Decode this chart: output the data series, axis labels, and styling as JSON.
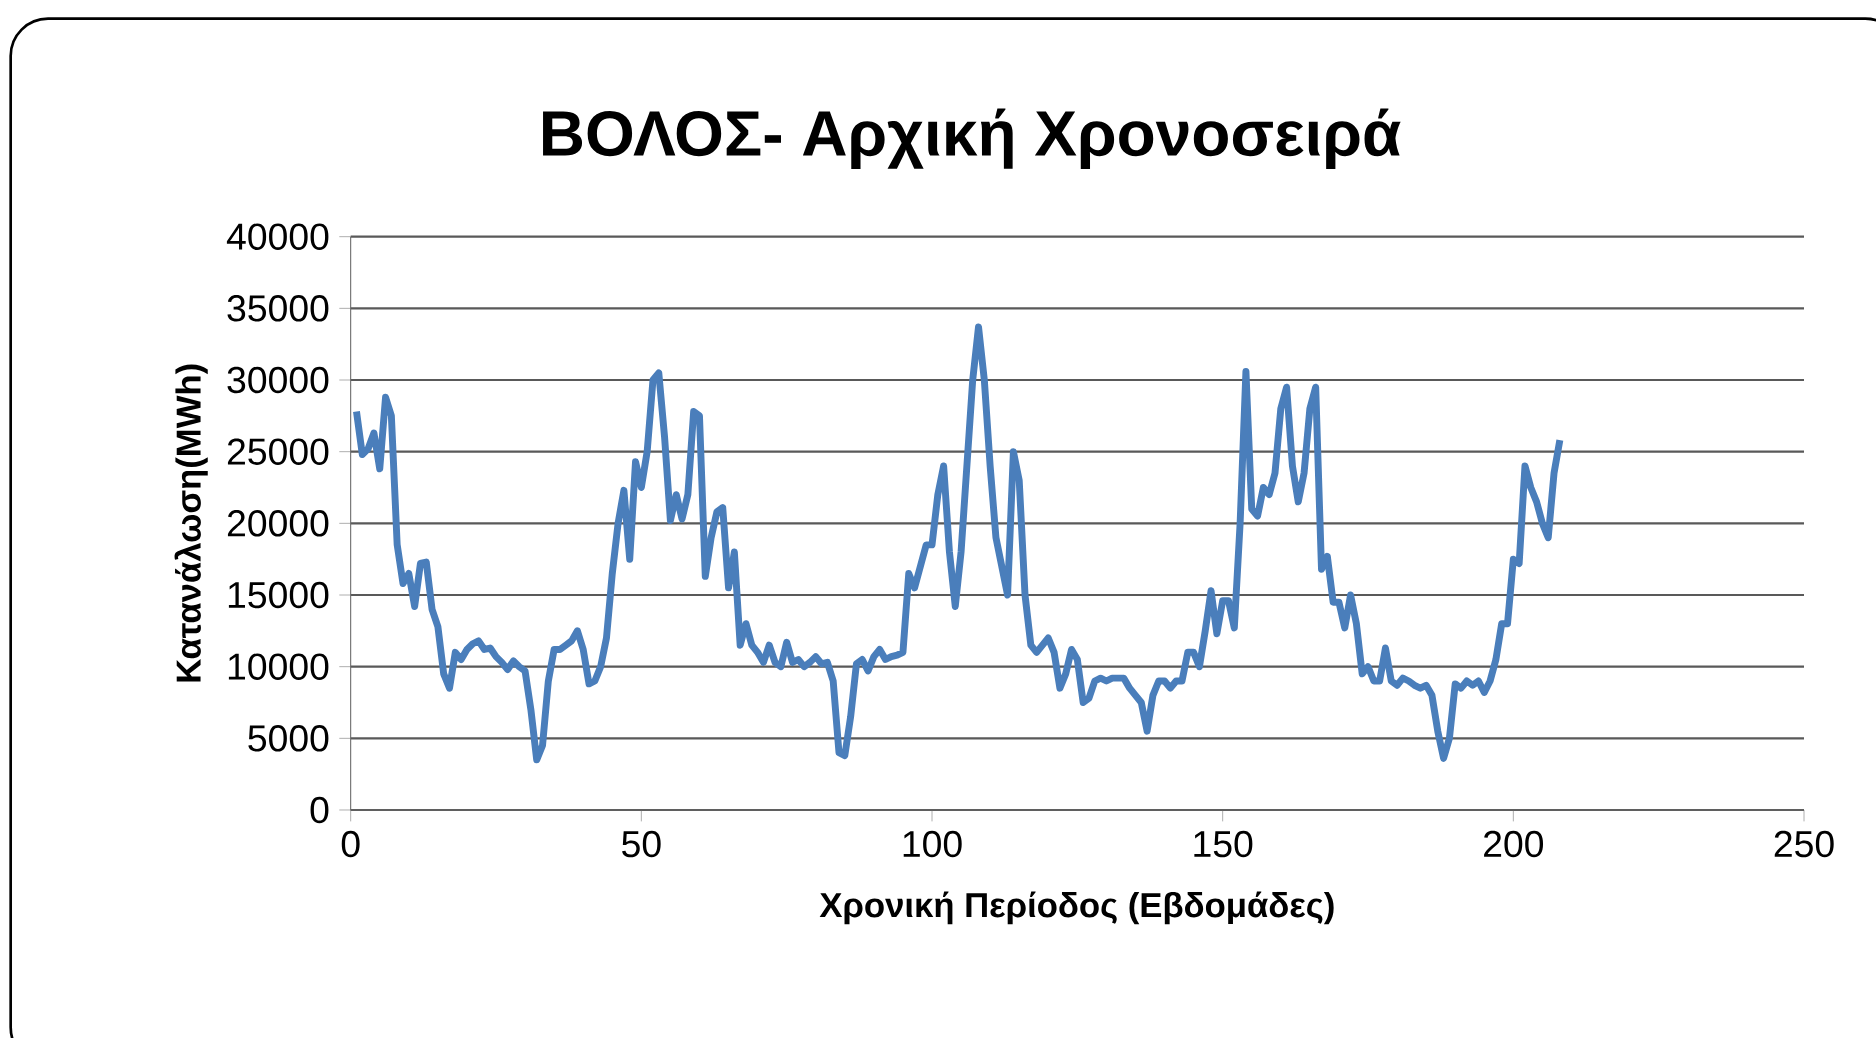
{
  "chart_data": {
    "type": "line",
    "title": "ΒΟΛΟΣ- Αρχική Χρονοσειρά",
    "xlabel": "Χρονική Περίοδος (Εβδομάδες)",
    "ylabel": "Κατανάλωση(MWh)",
    "x": [
      1,
      2,
      3,
      4,
      5,
      6,
      7,
      8,
      9,
      10,
      11,
      12,
      13,
      14,
      15,
      16,
      17,
      18,
      19,
      20,
      21,
      22,
      23,
      24,
      25,
      26,
      27,
      28,
      29,
      30,
      31,
      32,
      33,
      34,
      35,
      36,
      37,
      38,
      39,
      40,
      41,
      42,
      43,
      44,
      45,
      46,
      47,
      48,
      49,
      50,
      51,
      52,
      53,
      54,
      55,
      56,
      57,
      58,
      59,
      60,
      61,
      62,
      63,
      64,
      65,
      66,
      67,
      68,
      69,
      70,
      71,
      72,
      73,
      74,
      75,
      76,
      77,
      78,
      79,
      80,
      81,
      82,
      83,
      84,
      85,
      86,
      87,
      88,
      89,
      90,
      91,
      92,
      93,
      94,
      95,
      96,
      97,
      98,
      99,
      100,
      101,
      102,
      103,
      104,
      105,
      106,
      107,
      108,
      109,
      110,
      111,
      112,
      113,
      114,
      115,
      116,
      117,
      118,
      119,
      120,
      121,
      122,
      123,
      124,
      125,
      126,
      127,
      128,
      129,
      130,
      131,
      132,
      133,
      134,
      135,
      136,
      137,
      138,
      139,
      140,
      141,
      142,
      143,
      144,
      145,
      146,
      147,
      148,
      149,
      150,
      151,
      152,
      153,
      154,
      155,
      156,
      157,
      158,
      159,
      160,
      161,
      162,
      163,
      164,
      165,
      166,
      167,
      168,
      169,
      170,
      171,
      172,
      173,
      174,
      175,
      176,
      177,
      178,
      179,
      180,
      181,
      182,
      183,
      184,
      185,
      186,
      187,
      188,
      189,
      190,
      191,
      192,
      193,
      194,
      195,
      196,
      197,
      198,
      199,
      200,
      201,
      202,
      203,
      204,
      205,
      206,
      207,
      208
    ],
    "series": [
      {
        "color": "#4a7ebb",
        "values": [
          27800,
          24800,
          25200,
          26300,
          23800,
          28800,
          27500,
          18500,
          15800,
          16500,
          14200,
          17200,
          17300,
          14000,
          12800,
          9500,
          8500,
          11000,
          10500,
          11200,
          11600,
          11800,
          11200,
          11300,
          10700,
          10300,
          9800,
          10400,
          10000,
          9700,
          7000,
          3500,
          4500,
          9000,
          11200,
          11200,
          11500,
          11800,
          12500,
          11200,
          8800,
          9000,
          10000,
          12000,
          16500,
          20000,
          22300,
          17500,
          24300,
          22500,
          25000,
          30000,
          30500,
          26000,
          20200,
          22000,
          20300,
          22000,
          27800,
          27500,
          16300,
          19000,
          20800,
          21100,
          15500,
          18000,
          11500,
          13000,
          11500,
          11000,
          10300,
          11500,
          10300,
          10000,
          11700,
          10300,
          10500,
          10000,
          10300,
          10700,
          10200,
          10300,
          9000,
          4000,
          3800,
          6500,
          10200,
          10500,
          9700,
          10700,
          11200,
          10500,
          10700,
          10800,
          11000,
          16500,
          15500,
          17000,
          18500,
          18500,
          22000,
          24000,
          18000,
          14200,
          18000,
          24000,
          30000,
          33700,
          30000,
          24000,
          19000,
          17000,
          15000,
          25000,
          23000,
          15000,
          11500,
          11000,
          11500,
          12000,
          11000,
          8500,
          9500,
          11200,
          10500,
          7500,
          7800,
          9000,
          9200,
          9000,
          9200,
          9200,
          9200,
          8500,
          8000,
          7500,
          5500,
          8000,
          9000,
          9000,
          8500,
          9000,
          9000,
          11000,
          11000,
          10000,
          12500,
          15300,
          12300,
          14600,
          14600,
          12700,
          20000,
          30600,
          21000,
          20500,
          22500,
          22000,
          23500,
          28000,
          29500,
          24000,
          21500,
          23500,
          28000,
          29500,
          16800,
          17700,
          14500,
          14500,
          12700,
          15000,
          13000,
          9500,
          10000,
          9000,
          9000,
          11300,
          9000,
          8700,
          9200,
          9000,
          8700,
          8500,
          8700,
          8000,
          5500,
          3600,
          5000,
          8800,
          8500,
          9000,
          8700,
          9000,
          8200,
          9000,
          10500,
          13000,
          13000,
          17500,
          17200,
          24000,
          22500,
          21500,
          20000,
          19000,
          23500,
          25800
        ]
      }
    ],
    "xlim": [
      0,
      250
    ],
    "xticks": [
      0,
      50,
      100,
      150,
      200,
      250
    ],
    "ylim": [
      0,
      40000
    ],
    "yticks": [
      0,
      5000,
      10000,
      15000,
      20000,
      25000,
      30000,
      35000,
      40000
    ],
    "grid": "y",
    "marker": "none",
    "line_style": "solid"
  }
}
